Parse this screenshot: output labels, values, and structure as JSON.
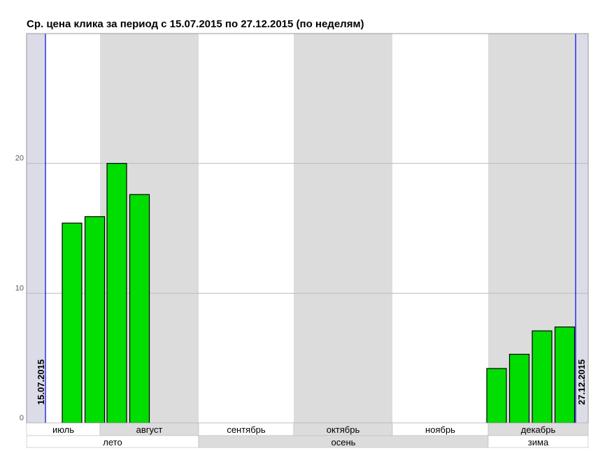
{
  "chart_data": {
    "type": "bar",
    "title": "Ср. цена клика за период с 15.07.2015 по 27.12.2015 (по неделям)",
    "xlabel": "",
    "ylabel": "",
    "ylim": [
      0,
      30
    ],
    "yticks": [
      "0",
      "10",
      "20"
    ],
    "grid": true,
    "period_start_label": "15.07.2015",
    "period_end_label": "27.12.2015",
    "months": [
      "июль",
      "август",
      "сентябрь",
      "октябрь",
      "ноябрь",
      "декабрь"
    ],
    "seasons": [
      "лето",
      "осень",
      "зима"
    ],
    "series": [
      {
        "months": [
          "июль",
          "июль",
          "август",
          "август",
          "декабрь",
          "декабрь",
          "декабрь",
          "декабрь"
        ],
        "values": [
          15.4,
          15.9,
          20.0,
          17.6,
          4.2,
          5.3,
          7.1,
          7.4
        ]
      }
    ],
    "colors": {
      "bar": "#00dd00",
      "bar_border": "#000000",
      "period_line": "#0000dd",
      "outside_period": "#dcdce8",
      "shaded_month": "#dcdcdc",
      "gridline": "#bbbbbb"
    }
  }
}
